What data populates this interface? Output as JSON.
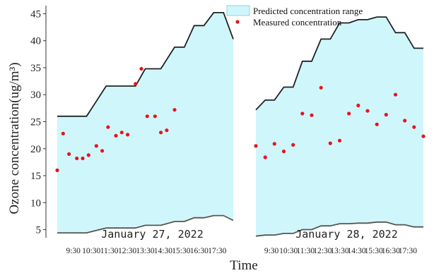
{
  "chart_data": {
    "type": "area",
    "xlabel": "Time",
    "ylabel": "Ozone concentration(ug/m³)",
    "ylim": [
      3.5,
      46.5
    ],
    "yticks": [
      5,
      10,
      15,
      20,
      25,
      30,
      35,
      40,
      45
    ],
    "grid": false,
    "legend_position": "top-right",
    "legend": [
      {
        "label": "Predicted concentration range",
        "kind": "area",
        "color": "#cff7fb"
      },
      {
        "label": "Measured concentration",
        "kind": "point",
        "color": "#e8141c"
      }
    ],
    "colors": {
      "band": "#cff7fb",
      "upper": "#222222",
      "lower": "#555555",
      "points": "#e8141c"
    },
    "panels": [
      {
        "date": "January 27,  2022",
        "x_tick_labels": [
          "9:30",
          "10:30",
          "11:30",
          "12:30",
          "13:30",
          "14:30",
          "15:30",
          "16:30",
          "17:30"
        ],
        "upper_x": [
          9.0,
          10.0,
          10.5,
          11.5,
          12.0,
          12.3,
          13.0,
          13.5,
          14.0,
          14.3,
          15.0,
          15.5,
          16.0,
          16.5,
          17.0,
          17.5,
          18.0
        ],
        "upper_y": [
          26,
          26,
          26,
          31.6,
          31.6,
          31.6,
          31.6,
          34.8,
          34.8,
          34.8,
          38.8,
          38.8,
          42.8,
          42.8,
          45.2,
          45.2,
          40.3
        ],
        "lower_x": [
          9.0,
          10.0,
          10.5,
          11.5,
          12.0,
          12.3,
          13.0,
          13.5,
          14.0,
          14.3,
          15.0,
          15.5,
          16.0,
          16.5,
          17.0,
          17.5,
          18.0
        ],
        "lower_y": [
          4.4,
          4.4,
          4.4,
          5.3,
          5.3,
          5.3,
          5.3,
          5.8,
          5.8,
          5.8,
          6.5,
          6.5,
          7.2,
          7.2,
          7.6,
          7.6,
          6.7
        ],
        "points_x": [
          9.0,
          9.3,
          9.6,
          10.0,
          10.3,
          10.6,
          11.0,
          11.3,
          11.6,
          12.0,
          12.3,
          12.6,
          13.0,
          13.3,
          13.6,
          14.0,
          14.3,
          14.6,
          15.0
        ],
        "points_y": [
          16.0,
          22.8,
          19.0,
          18.2,
          18.2,
          18.8,
          20.5,
          19.6,
          24.0,
          22.4,
          23.0,
          22.6,
          32.0,
          34.8,
          26.0,
          26.0,
          23.0,
          23.4,
          27.2
        ]
      },
      {
        "date": "January 28,  2022",
        "x_tick_labels": [
          "9:30",
          "10:30",
          "11:30",
          "12:30",
          "13:30",
          "14:30",
          "15:30",
          "16:30",
          "17:30"
        ],
        "upper_x": [
          9.0,
          9.5,
          10.0,
          10.5,
          11.0,
          11.5,
          12.0,
          12.5,
          13.0,
          13.5,
          14.0,
          14.5,
          15.0,
          15.5,
          16.0,
          16.5,
          17.0,
          17.5,
          18.0
        ],
        "upper_y": [
          27.2,
          29.0,
          29.0,
          31.4,
          31.4,
          36.2,
          36.2,
          40.3,
          40.3,
          43.3,
          43.3,
          43.9,
          43.9,
          44.4,
          44.4,
          41.5,
          41.5,
          38.6,
          38.6
        ],
        "lower_x": [
          9.0,
          9.5,
          10.0,
          10.5,
          11.0,
          11.5,
          12.0,
          12.5,
          13.0,
          13.5,
          14.0,
          14.5,
          15.0,
          15.5,
          16.0,
          16.5,
          17.0,
          17.5,
          18.0
        ],
        "lower_y": [
          3.8,
          4.0,
          4.0,
          4.3,
          4.3,
          5.0,
          5.0,
          5.7,
          5.7,
          6.1,
          6.1,
          6.2,
          6.2,
          6.4,
          6.4,
          5.9,
          5.9,
          5.5,
          5.5
        ],
        "points_x": [
          9.0,
          9.5,
          10.0,
          10.5,
          11.0,
          11.5,
          12.0,
          12.5,
          13.0,
          13.5,
          14.0,
          14.5,
          15.0,
          15.5,
          16.0,
          16.5,
          17.0,
          17.5,
          18.0
        ],
        "points_y": [
          20.5,
          18.4,
          20.9,
          19.5,
          20.7,
          26.5,
          26.2,
          31.3,
          21.0,
          21.5,
          26.5,
          28.0,
          27.0,
          24.5,
          26.3,
          30.0,
          25.2,
          24.0,
          22.3
        ]
      }
    ]
  }
}
